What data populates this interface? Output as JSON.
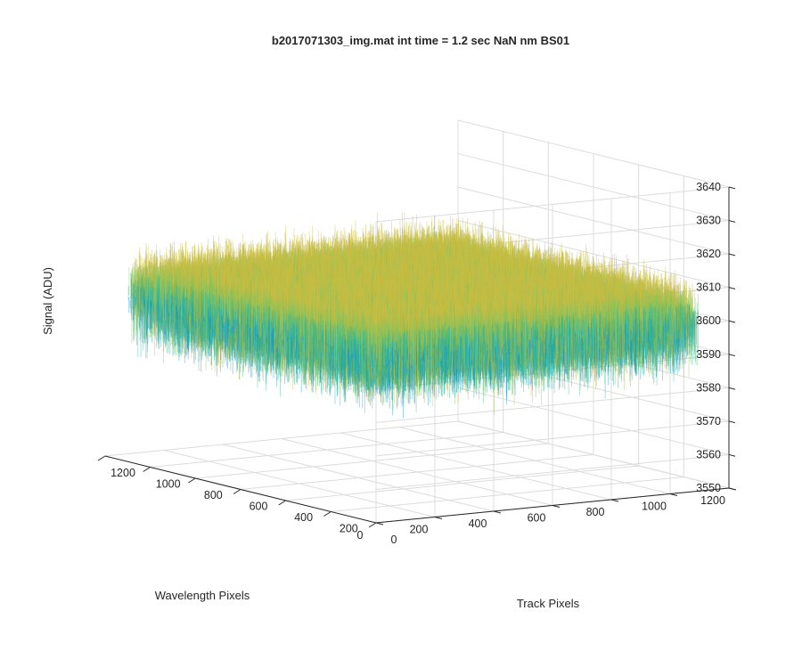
{
  "chart_data": {
    "type": "surface",
    "title": "b2017071303_img.mat int time = 1.2 sec  NaN nm BS01",
    "xlabel": "Track Pixels",
    "ylabel": "Wavelength Pixels",
    "zlabel": "Signal (ADU)",
    "xlim": [
      0,
      1200
    ],
    "ylim": [
      0,
      1200
    ],
    "zlim": [
      3550,
      3640
    ],
    "x_ticks": [
      "0",
      "200",
      "400",
      "600",
      "800",
      "1000",
      "1200"
    ],
    "y_ticks": [
      "0",
      "200",
      "400",
      "600",
      "800",
      "1000",
      "1200"
    ],
    "z_ticks": [
      "3550",
      "3560",
      "3570",
      "3580",
      "3590",
      "3600",
      "3610",
      "3620",
      "3630",
      "3640"
    ],
    "surface_extent": {
      "x": [
        0,
        1100
      ],
      "y": [
        0,
        1100
      ]
    },
    "surface_mean": 3605,
    "noise_range": [
      3553,
      3630
    ],
    "grid": true,
    "view": "3d-azimuth-minus37.5-elevation30",
    "colormap": [
      "#0a8fd8",
      "#17a6b8",
      "#3cb88a",
      "#8fc25a",
      "#c9be44"
    ]
  }
}
